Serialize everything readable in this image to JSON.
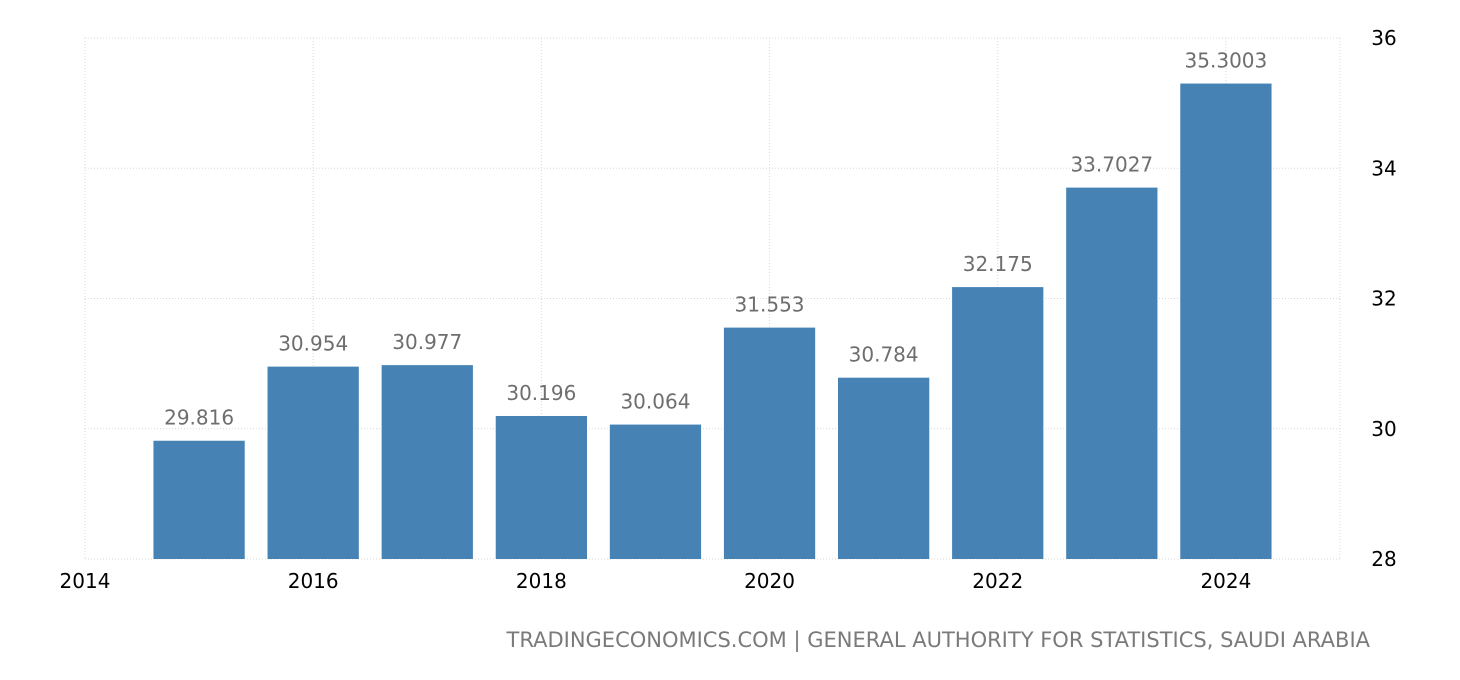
{
  "chart_data": {
    "type": "bar",
    "title": "",
    "xlabel": "",
    "ylabel": "",
    "x": [
      2015,
      2016,
      2017,
      2018,
      2019,
      2020,
      2021,
      2022,
      2023,
      2024
    ],
    "values": [
      29.816,
      30.954,
      30.977,
      30.196,
      30.064,
      31.553,
      30.784,
      32.175,
      33.7027,
      35.3003
    ],
    "value_labels": [
      "29.816",
      "30.954",
      "30.977",
      "30.196",
      "30.064",
      "31.553",
      "30.784",
      "32.175",
      "33.7027",
      "35.3003"
    ],
    "xlim": [
      2014,
      2025
    ],
    "ylim": [
      28,
      36
    ],
    "x_ticks": [
      "2014",
      "2016",
      "2018",
      "2020",
      "2022",
      "2024"
    ],
    "y_ticks": [
      "28",
      "30",
      "32",
      "34",
      "36"
    ],
    "y_axis_side": "right",
    "grid": true,
    "legend": "none",
    "bar_color": "#4682b4"
  },
  "footer": {
    "credit": "TRADINGECONOMICS.COM | GENERAL AUTHORITY FOR STATISTICS, SAUDI ARABIA"
  }
}
